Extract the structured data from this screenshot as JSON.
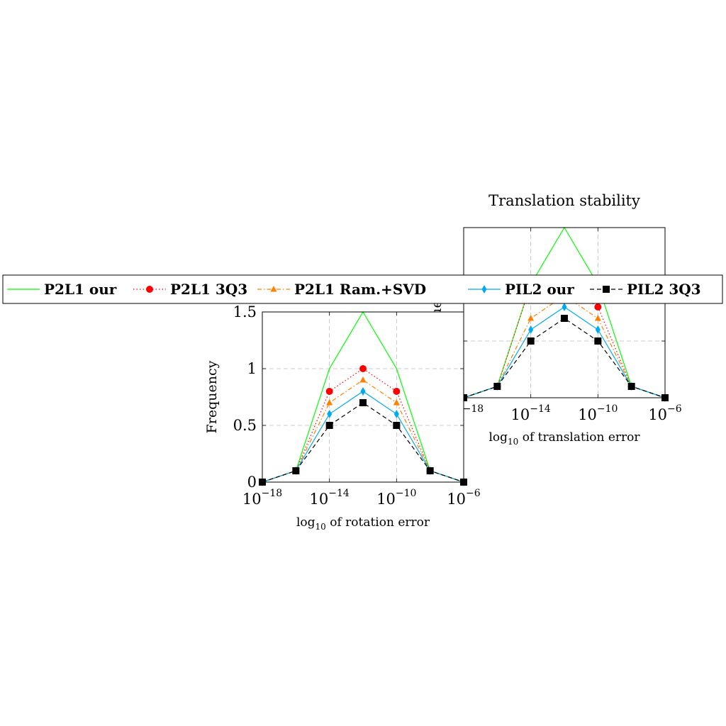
{
  "legend": {
    "entries": [
      {
        "label": "P2L1 our",
        "color": "#00ff00",
        "dash": "",
        "marker": "none"
      },
      {
        "label": "P2L1 3Q3",
        "color": "#ff0000",
        "dash": "1.5,3",
        "marker": "circle"
      },
      {
        "label": "P2L1 Ram.+SVD",
        "color": "#ff8000",
        "dash": "6,3,1.5,3",
        "marker": "triangle"
      },
      {
        "label": "PIL2 our",
        "color": "#00aaee",
        "dash": "",
        "marker": "diamond"
      },
      {
        "label": "PIL2 3Q3",
        "color": "#000000",
        "dash": "6,4",
        "marker": "square"
      }
    ]
  },
  "chart_data": [
    {
      "type": "line",
      "title": "",
      "xlabel": "log10 of rotation error",
      "xlabel_base": "log",
      "xlabel_sub": "10",
      "xlabel_rest": " of rotation error",
      "ylabel": "Frequency",
      "x": [
        -18,
        -16,
        -14,
        -12,
        -10,
        -8,
        -6
      ],
      "xlim": [
        -18,
        -6
      ],
      "ylim": [
        0,
        1.5
      ],
      "xticks": [
        {
          "base": "10",
          "exp": "−18",
          "v": -18
        },
        {
          "base": "10",
          "exp": "−14",
          "v": -14
        },
        {
          "base": "10",
          "exp": "−10",
          "v": -10
        },
        {
          "base": "10",
          "exp": "−6",
          "v": -6
        }
      ],
      "yticks": [
        {
          "label": "0",
          "v": 0
        },
        {
          "label": "0.5",
          "v": 0.5
        },
        {
          "label": "1",
          "v": 1
        },
        {
          "label": "1.5",
          "v": 1.5
        }
      ],
      "grid": true,
      "series": [
        {
          "name": "P2L1 our",
          "values": [
            0,
            0.1,
            1.0,
            1.5,
            1.0,
            0.1,
            0
          ]
        },
        {
          "name": "P2L1 3Q3",
          "values": [
            0,
            0.1,
            0.8,
            1.0,
            0.8,
            0.1,
            0
          ]
        },
        {
          "name": "P2L1 Ram.+SVD",
          "values": [
            0,
            0.1,
            0.7,
            0.9,
            0.7,
            0.1,
            0
          ]
        },
        {
          "name": "PIL2 our",
          "values": [
            0,
            0.1,
            0.6,
            0.8,
            0.6,
            0.1,
            0
          ]
        },
        {
          "name": "PIL2 3Q3",
          "values": [
            0,
            0.1,
            0.5,
            0.7,
            0.5,
            0.1,
            0
          ]
        }
      ]
    },
    {
      "type": "line",
      "title": "Translation stability",
      "xlabel": "log10 of translation error",
      "xlabel_base": "log",
      "xlabel_sub": "10",
      "xlabel_rest": " of translation error",
      "ylabel": "Frequency",
      "x": [
        -18,
        -16,
        -14,
        -12,
        -10,
        -8,
        -6
      ],
      "xlim": [
        -18,
        -6
      ],
      "ylim": [
        0,
        1.5
      ],
      "xticks": [
        {
          "base": "10",
          "exp": "−18",
          "v": -18
        },
        {
          "base": "10",
          "exp": "−14",
          "v": -14
        },
        {
          "base": "10",
          "exp": "−10",
          "v": -10
        },
        {
          "base": "10",
          "exp": "−6",
          "v": -6
        }
      ],
      "yticks": [],
      "grid": true,
      "series": [
        {
          "name": "P2L1 our",
          "values": [
            0,
            0.1,
            1.0,
            1.5,
            1.0,
            0.1,
            0
          ]
        },
        {
          "name": "P2L1 3Q3",
          "values": [
            0,
            0.1,
            1.0,
            1.0,
            0.8,
            0.1,
            0
          ]
        },
        {
          "name": "P2L1 Ram.+SVD",
          "values": [
            0,
            0.1,
            0.7,
            0.9,
            0.7,
            0.1,
            0
          ]
        },
        {
          "name": "PIL2 our",
          "values": [
            0,
            0.1,
            0.6,
            0.8,
            0.6,
            0.1,
            0
          ]
        },
        {
          "name": "PIL2 3Q3",
          "values": [
            0,
            0.1,
            0.5,
            0.7,
            0.5,
            0.1,
            0
          ]
        }
      ]
    }
  ]
}
